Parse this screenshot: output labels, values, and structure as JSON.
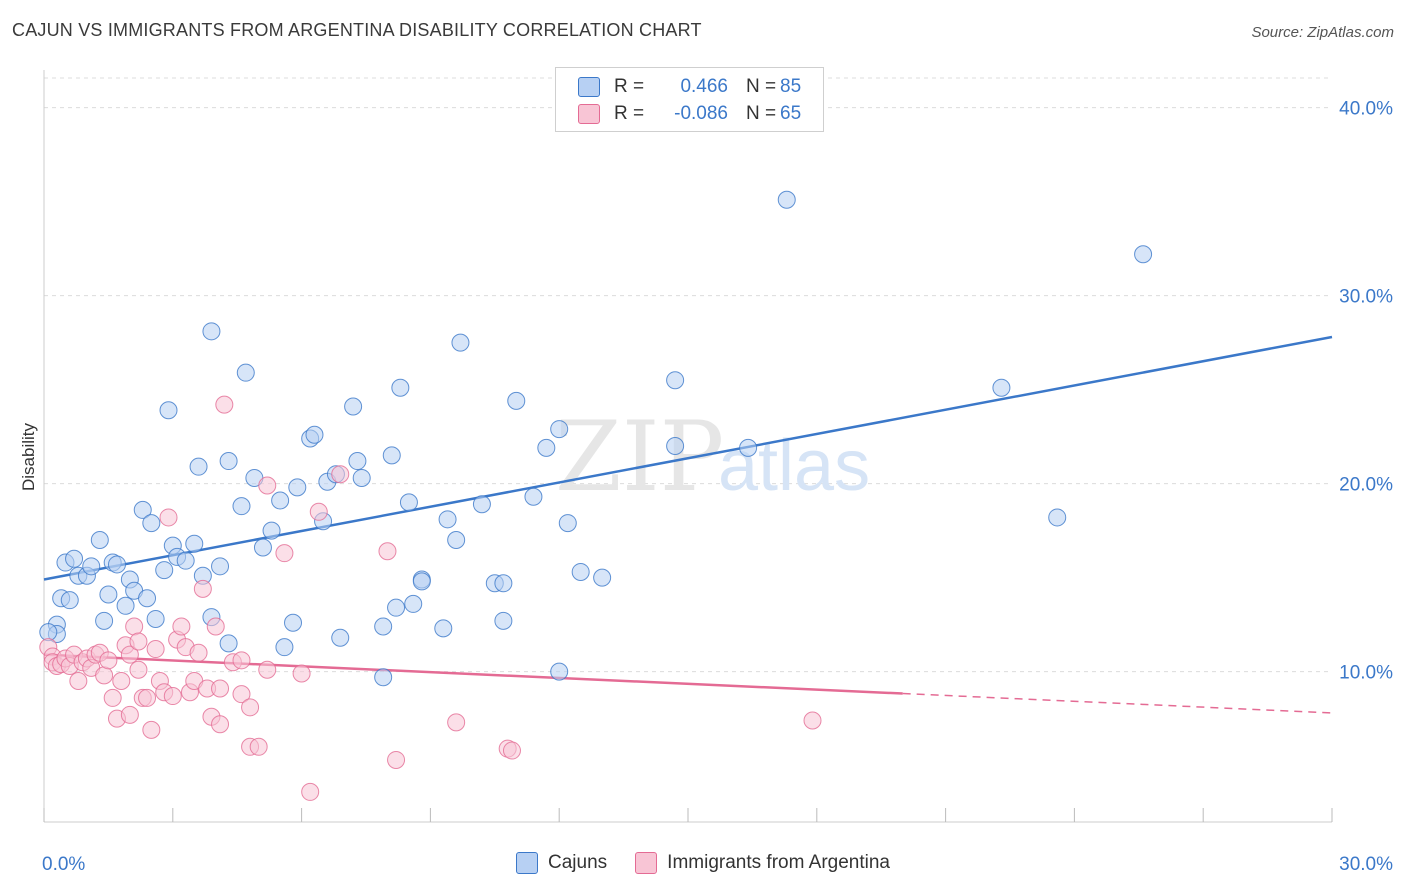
{
  "title": "CAJUN VS IMMIGRANTS FROM ARGENTINA DISABILITY CORRELATION CHART",
  "source": "Source: ZipAtlas.com",
  "watermark": {
    "zip": "ZIP",
    "atlas": "atlas"
  },
  "colors": {
    "blue": "#3b78c9",
    "blue_fill": "#b7d0f3",
    "pink": "#e46b94",
    "pink_fill": "#f8c5d5",
    "grid": "#dcdcdc"
  },
  "legend": {
    "rows": [
      {
        "r_label": "R =",
        "r_value": "0.466",
        "n_label": "N =",
        "n_value": "85"
      },
      {
        "r_label": "R =",
        "r_value": "-0.086",
        "n_label": "N =",
        "n_value": "65"
      }
    ]
  },
  "chart_data": {
    "type": "scatter",
    "ylabel": "Disability",
    "xlim": [
      0,
      30
    ],
    "ylim": [
      2,
      42
    ],
    "x_ticks": [
      0,
      3,
      6,
      9,
      12,
      15,
      18,
      21,
      24,
      27,
      30
    ],
    "x_tick_labels": {
      "0": "0.0%",
      "30": "30.0%"
    },
    "y_ticks": [
      10,
      20,
      30,
      40
    ],
    "y_tick_labels": [
      "10.0%",
      "20.0%",
      "30.0%",
      "40.0%"
    ],
    "series": [
      {
        "name": "Cajuns",
        "trend": {
          "x0": 0,
          "y0": 14.9,
          "x1": 30,
          "y1": 27.8,
          "solid_to": 30
        },
        "points": [
          [
            0.3,
            12.5
          ],
          [
            0.3,
            12.0
          ],
          [
            0.4,
            13.9
          ],
          [
            0.5,
            15.8
          ],
          [
            0.6,
            13.8
          ],
          [
            0.7,
            16.0
          ],
          [
            0.8,
            15.1
          ],
          [
            1.0,
            15.1
          ],
          [
            1.1,
            15.6
          ],
          [
            1.3,
            17.0
          ],
          [
            1.4,
            12.7
          ],
          [
            1.5,
            14.1
          ],
          [
            1.6,
            15.8
          ],
          [
            1.7,
            15.7
          ],
          [
            1.9,
            13.5
          ],
          [
            2.0,
            14.9
          ],
          [
            2.1,
            14.3
          ],
          [
            2.3,
            18.6
          ],
          [
            2.4,
            13.9
          ],
          [
            2.5,
            17.9
          ],
          [
            2.6,
            12.8
          ],
          [
            2.8,
            15.4
          ],
          [
            2.9,
            23.9
          ],
          [
            3.0,
            16.7
          ],
          [
            3.1,
            16.1
          ],
          [
            3.3,
            15.9
          ],
          [
            3.5,
            16.8
          ],
          [
            3.6,
            20.9
          ],
          [
            3.7,
            15.1
          ],
          [
            3.9,
            28.1
          ],
          [
            3.9,
            12.9
          ],
          [
            4.1,
            15.6
          ],
          [
            4.3,
            21.2
          ],
          [
            4.3,
            11.5
          ],
          [
            4.6,
            18.8
          ],
          [
            4.7,
            25.9
          ],
          [
            4.9,
            20.3
          ],
          [
            5.1,
            16.6
          ],
          [
            5.3,
            17.5
          ],
          [
            5.5,
            19.1
          ],
          [
            5.6,
            11.3
          ],
          [
            5.8,
            12.6
          ],
          [
            5.9,
            19.8
          ],
          [
            6.2,
            22.4
          ],
          [
            6.3,
            22.6
          ],
          [
            6.5,
            18.0
          ],
          [
            6.6,
            20.1
          ],
          [
            6.8,
            20.5
          ],
          [
            6.9,
            11.8
          ],
          [
            7.2,
            24.1
          ],
          [
            7.3,
            21.2
          ],
          [
            7.4,
            20.3
          ],
          [
            7.9,
            12.4
          ],
          [
            7.9,
            9.7
          ],
          [
            8.1,
            21.5
          ],
          [
            8.2,
            13.4
          ],
          [
            8.3,
            25.1
          ],
          [
            8.5,
            19.0
          ],
          [
            8.6,
            13.6
          ],
          [
            8.8,
            14.9
          ],
          [
            8.8,
            14.8
          ],
          [
            9.3,
            12.3
          ],
          [
            9.4,
            18.1
          ],
          [
            9.6,
            17.0
          ],
          [
            9.7,
            27.5
          ],
          [
            10.2,
            18.9
          ],
          [
            10.5,
            14.7
          ],
          [
            10.7,
            12.7
          ],
          [
            10.7,
            14.7
          ],
          [
            11.0,
            24.4
          ],
          [
            11.4,
            19.3
          ],
          [
            11.7,
            21.9
          ],
          [
            12.0,
            22.9
          ],
          [
            12.0,
            10.0
          ],
          [
            12.2,
            17.9
          ],
          [
            12.5,
            15.3
          ],
          [
            13.0,
            15.0
          ],
          [
            14.7,
            25.5
          ],
          [
            14.7,
            22.0
          ],
          [
            16.4,
            21.9
          ],
          [
            17.3,
            35.1
          ],
          [
            22.3,
            25.1
          ],
          [
            23.6,
            18.2
          ],
          [
            25.6,
            32.2
          ],
          [
            0.1,
            12.1
          ]
        ]
      },
      {
        "name": "Immigrants from Argentina",
        "trend": {
          "x0": 0,
          "y0": 10.9,
          "x1": 30,
          "y1": 7.8,
          "solid_to": 20.0
        },
        "points": [
          [
            0.1,
            11.3
          ],
          [
            0.2,
            10.8
          ],
          [
            0.2,
            10.5
          ],
          [
            0.3,
            10.3
          ],
          [
            0.4,
            10.4
          ],
          [
            0.5,
            10.7
          ],
          [
            0.6,
            10.3
          ],
          [
            0.7,
            10.9
          ],
          [
            0.8,
            9.5
          ],
          [
            0.9,
            10.5
          ],
          [
            1.0,
            10.7
          ],
          [
            1.1,
            10.2
          ],
          [
            1.2,
            10.9
          ],
          [
            1.3,
            11.0
          ],
          [
            1.4,
            9.8
          ],
          [
            1.5,
            10.6
          ],
          [
            1.6,
            8.6
          ],
          [
            1.7,
            7.5
          ],
          [
            1.8,
            9.5
          ],
          [
            1.9,
            11.4
          ],
          [
            2.0,
            10.9
          ],
          [
            2.0,
            7.7
          ],
          [
            2.1,
            12.4
          ],
          [
            2.2,
            11.6
          ],
          [
            2.3,
            8.6
          ],
          [
            2.4,
            8.6
          ],
          [
            2.5,
            6.9
          ],
          [
            2.6,
            11.2
          ],
          [
            2.7,
            9.5
          ],
          [
            2.8,
            8.9
          ],
          [
            2.9,
            18.2
          ],
          [
            3.0,
            8.7
          ],
          [
            3.1,
            11.7
          ],
          [
            3.2,
            12.4
          ],
          [
            3.3,
            11.3
          ],
          [
            3.4,
            8.9
          ],
          [
            3.5,
            9.5
          ],
          [
            3.6,
            11.0
          ],
          [
            3.7,
            14.4
          ],
          [
            3.8,
            9.1
          ],
          [
            3.9,
            7.6
          ],
          [
            4.0,
            12.4
          ],
          [
            4.1,
            9.1
          ],
          [
            4.1,
            7.2
          ],
          [
            4.2,
            24.2
          ],
          [
            4.4,
            10.5
          ],
          [
            4.6,
            10.6
          ],
          [
            4.6,
            8.8
          ],
          [
            4.8,
            8.1
          ],
          [
            4.8,
            6.0
          ],
          [
            5.0,
            6.0
          ],
          [
            5.2,
            10.1
          ],
          [
            5.2,
            19.9
          ],
          [
            5.6,
            16.3
          ],
          [
            6.0,
            9.9
          ],
          [
            6.2,
            3.6
          ],
          [
            6.4,
            18.5
          ],
          [
            6.9,
            20.5
          ],
          [
            8.0,
            16.4
          ],
          [
            8.2,
            5.3
          ],
          [
            9.6,
            7.3
          ],
          [
            10.8,
            5.9
          ],
          [
            10.9,
            5.8
          ],
          [
            17.9,
            7.4
          ],
          [
            2.2,
            10.1
          ]
        ]
      }
    ]
  },
  "bottom_legend": [
    {
      "label": "Cajuns"
    },
    {
      "label": "Immigrants from Argentina"
    }
  ]
}
